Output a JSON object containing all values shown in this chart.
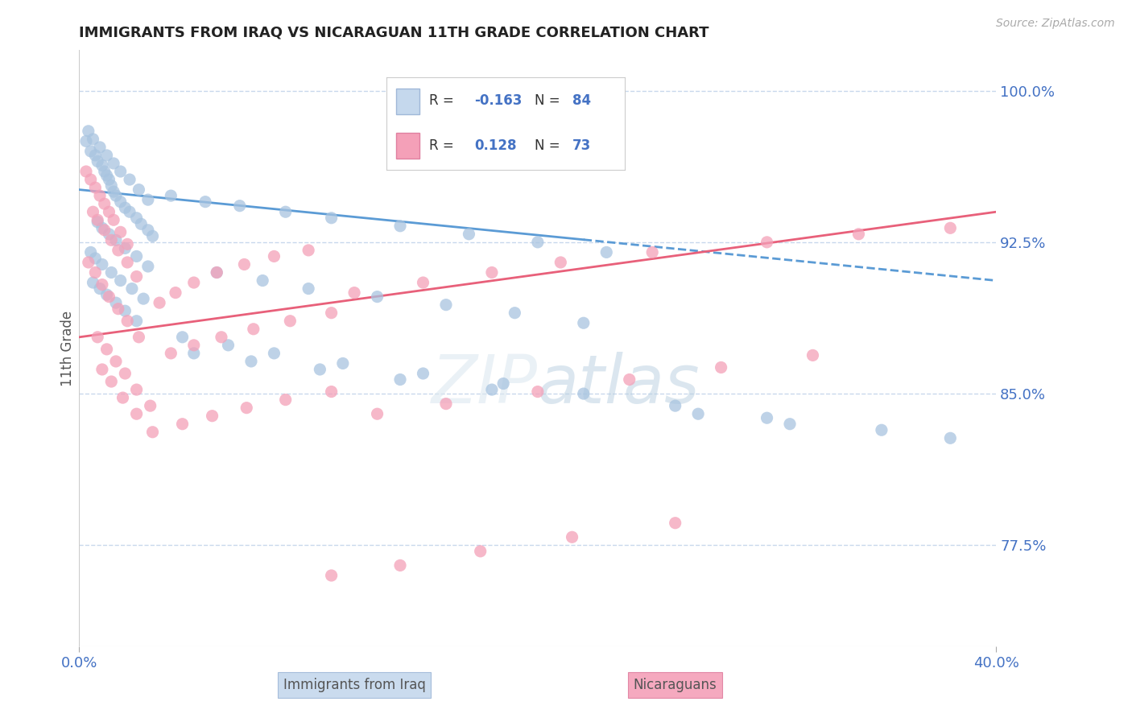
{
  "title": "IMMIGRANTS FROM IRAQ VS NICARAGUAN 11TH GRADE CORRELATION CHART",
  "source_text": "Source: ZipAtlas.com",
  "ylabel": "11th Grade",
  "x_min": 0.0,
  "x_max": 0.4,
  "y_min": 0.725,
  "y_max": 1.02,
  "y_ticks": [
    0.775,
    0.85,
    0.925,
    1.0
  ],
  "y_tick_labels": [
    "77.5%",
    "85.0%",
    "92.5%",
    "100.0%"
  ],
  "x_tick_labels": [
    "0.0%",
    "40.0%"
  ],
  "color_iraq": "#a8c4e0",
  "color_nicaragua": "#f4a0b8",
  "color_iraq_line": "#5b9bd5",
  "color_nicaragua_line": "#e8607a",
  "color_axis_labels": "#4472c4",
  "color_grid": "#c8d8ec",
  "background_color": "#ffffff",
  "iraq_trend_x": [
    0.0,
    0.4
  ],
  "iraq_trend_y": [
    0.951,
    0.906
  ],
  "nicaragua_trend_x": [
    0.0,
    0.4
  ],
  "nicaragua_trend_y": [
    0.878,
    0.94
  ],
  "iraq_x": [
    0.003,
    0.005,
    0.007,
    0.008,
    0.01,
    0.011,
    0.012,
    0.013,
    0.014,
    0.015,
    0.016,
    0.018,
    0.02,
    0.022,
    0.025,
    0.027,
    0.03,
    0.032,
    0.004,
    0.006,
    0.009,
    0.012,
    0.015,
    0.018,
    0.022,
    0.026,
    0.03,
    0.008,
    0.01,
    0.013,
    0.016,
    0.02,
    0.025,
    0.03,
    0.005,
    0.007,
    0.01,
    0.014,
    0.018,
    0.023,
    0.028,
    0.006,
    0.009,
    0.012,
    0.016,
    0.02,
    0.025,
    0.04,
    0.055,
    0.07,
    0.09,
    0.11,
    0.14,
    0.17,
    0.2,
    0.23,
    0.06,
    0.08,
    0.1,
    0.13,
    0.16,
    0.19,
    0.22,
    0.05,
    0.075,
    0.105,
    0.14,
    0.18,
    0.045,
    0.065,
    0.085,
    0.115,
    0.15,
    0.185,
    0.22,
    0.26,
    0.3,
    0.35,
    0.38,
    0.31,
    0.27
  ],
  "iraq_y": [
    0.975,
    0.97,
    0.968,
    0.965,
    0.963,
    0.96,
    0.958,
    0.956,
    0.953,
    0.95,
    0.948,
    0.945,
    0.942,
    0.94,
    0.937,
    0.934,
    0.931,
    0.928,
    0.98,
    0.976,
    0.972,
    0.968,
    0.964,
    0.96,
    0.956,
    0.951,
    0.946,
    0.935,
    0.932,
    0.929,
    0.926,
    0.922,
    0.918,
    0.913,
    0.92,
    0.917,
    0.914,
    0.91,
    0.906,
    0.902,
    0.897,
    0.905,
    0.902,
    0.899,
    0.895,
    0.891,
    0.886,
    0.948,
    0.945,
    0.943,
    0.94,
    0.937,
    0.933,
    0.929,
    0.925,
    0.92,
    0.91,
    0.906,
    0.902,
    0.898,
    0.894,
    0.89,
    0.885,
    0.87,
    0.866,
    0.862,
    0.857,
    0.852,
    0.878,
    0.874,
    0.87,
    0.865,
    0.86,
    0.855,
    0.85,
    0.844,
    0.838,
    0.832,
    0.828,
    0.835,
    0.84
  ],
  "nicaragua_x": [
    0.003,
    0.005,
    0.007,
    0.009,
    0.011,
    0.013,
    0.015,
    0.018,
    0.021,
    0.006,
    0.008,
    0.011,
    0.014,
    0.017,
    0.021,
    0.025,
    0.004,
    0.007,
    0.01,
    0.013,
    0.017,
    0.021,
    0.026,
    0.008,
    0.012,
    0.016,
    0.02,
    0.025,
    0.031,
    0.01,
    0.014,
    0.019,
    0.025,
    0.032,
    0.035,
    0.042,
    0.05,
    0.06,
    0.072,
    0.085,
    0.1,
    0.04,
    0.05,
    0.062,
    0.076,
    0.092,
    0.11,
    0.045,
    0.058,
    0.073,
    0.09,
    0.11,
    0.12,
    0.15,
    0.18,
    0.21,
    0.25,
    0.3,
    0.34,
    0.38,
    0.13,
    0.16,
    0.2,
    0.24,
    0.28,
    0.32,
    0.11,
    0.14,
    0.175,
    0.215,
    0.26
  ],
  "nicaragua_y": [
    0.96,
    0.956,
    0.952,
    0.948,
    0.944,
    0.94,
    0.936,
    0.93,
    0.924,
    0.94,
    0.936,
    0.931,
    0.926,
    0.921,
    0.915,
    0.908,
    0.915,
    0.91,
    0.904,
    0.898,
    0.892,
    0.886,
    0.878,
    0.878,
    0.872,
    0.866,
    0.86,
    0.852,
    0.844,
    0.862,
    0.856,
    0.848,
    0.84,
    0.831,
    0.895,
    0.9,
    0.905,
    0.91,
    0.914,
    0.918,
    0.921,
    0.87,
    0.874,
    0.878,
    0.882,
    0.886,
    0.89,
    0.835,
    0.839,
    0.843,
    0.847,
    0.851,
    0.9,
    0.905,
    0.91,
    0.915,
    0.92,
    0.925,
    0.929,
    0.932,
    0.84,
    0.845,
    0.851,
    0.857,
    0.863,
    0.869,
    0.76,
    0.765,
    0.772,
    0.779,
    0.786
  ]
}
